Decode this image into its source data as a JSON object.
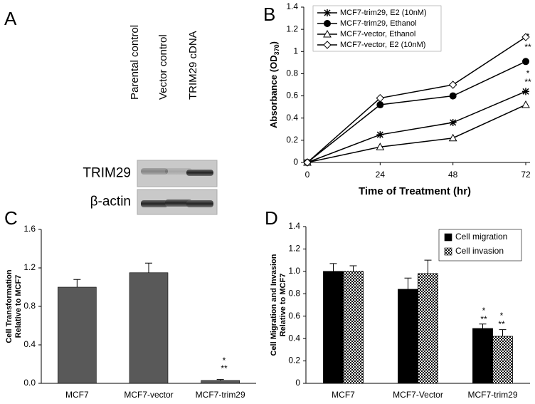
{
  "chart_data": [
    {
      "type": "blot",
      "panel": "A",
      "lanes": [
        "Parental control",
        "Vector control",
        "TRIM29 cDNA"
      ],
      "rows": [
        "TRIM29",
        "β-actin"
      ]
    },
    {
      "type": "line",
      "panel": "B",
      "x_label": "Time of Treatment (hr)",
      "y_label": "Absorbance (OD",
      "y_label_sub": "370",
      "y_label_end": ")",
      "x": [
        0,
        24,
        48,
        72
      ],
      "xlim": [
        0,
        72
      ],
      "xticks": [
        0,
        24,
        48,
        72
      ],
      "ylim": [
        0,
        1.4
      ],
      "yticks": [
        0,
        0.2,
        0.4,
        0.6,
        0.8,
        1,
        1.2,
        1.4
      ],
      "series": [
        {
          "name": "MCF7-trim29, E2 (10nM)",
          "marker": "star",
          "color": "#000000",
          "values": [
            0,
            0.25,
            0.36,
            0.64
          ]
        },
        {
          "name": "MCF7-trim29, Ethanol",
          "marker": "circle",
          "color": "#000000",
          "values": [
            0,
            0.52,
            0.6,
            0.91
          ]
        },
        {
          "name": "MCF7-vector, Ethanol",
          "marker": "triangle",
          "color": "#000000",
          "values": [
            0,
            0.14,
            0.22,
            0.52
          ]
        },
        {
          "name": "MCF7-vector, E2 (10nM)",
          "marker": "diamond",
          "color": "#000000",
          "values": [
            0,
            0.58,
            0.7,
            1.13
          ]
        }
      ],
      "annotations": [
        "*",
        "**",
        "*",
        "**"
      ],
      "legend": "upper-left"
    },
    {
      "type": "bar",
      "panel": "C",
      "y_label": [
        "Cell Transformation",
        "Relative to MCF7"
      ],
      "categories": [
        "MCF7",
        "MCF7-vector",
        "MCF7-trim29"
      ],
      "values": [
        1.0,
        1.15,
        0.03
      ],
      "errors": [
        0.08,
        0.1,
        0.01
      ],
      "color": "#595959",
      "ylim": [
        0,
        1.6
      ],
      "yticks": [
        {
          "value": 0,
          "label": "0.0"
        },
        0.4,
        0.8,
        1.2,
        1.6
      ],
      "annotations": [
        "*",
        "**"
      ]
    },
    {
      "type": "grouped-bar",
      "panel": "D",
      "y_label": [
        "Cell Migration and Invasion",
        "Relative to MCF7"
      ],
      "categories": [
        "MCF7",
        "MCF7-Vector",
        "MCF7-trim29"
      ],
      "ylim": [
        0,
        1.4
      ],
      "yticks": [
        0,
        0.2,
        0.4,
        0.6,
        0.8,
        {
          "value": 1,
          "label": "1.0"
        },
        1.2,
        1.4
      ],
      "series": [
        {
          "name": "Cell migration",
          "color": "#000000",
          "pattern": "solid",
          "values": [
            1.0,
            0.84,
            0.49
          ],
          "errors": [
            0.07,
            0.1,
            0.04
          ]
        },
        {
          "name": "Cell invasion",
          "color": "#000000",
          "pattern": "checker",
          "values": [
            1.0,
            0.98,
            0.42
          ],
          "errors": [
            0.05,
            0.12,
            0.06
          ]
        }
      ],
      "annotations": [
        "*",
        "**",
        "*",
        "**"
      ],
      "legend": "upper-right"
    }
  ]
}
